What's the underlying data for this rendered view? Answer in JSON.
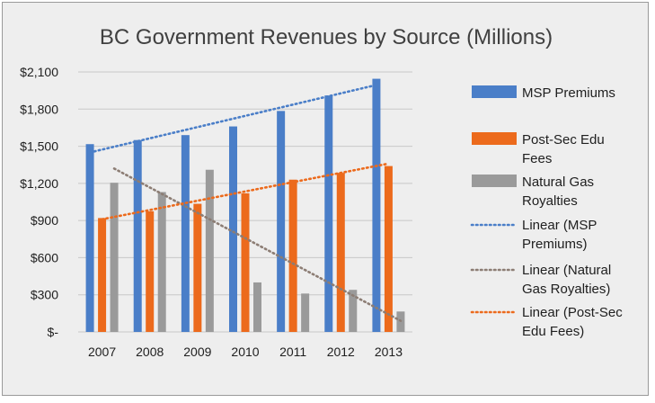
{
  "chart_data": {
    "type": "bar",
    "title": "BC Government Revenues by Source (Millions)",
    "xlabel": "",
    "ylabel": "",
    "categories": [
      "2007",
      "2008",
      "2009",
      "2010",
      "2011",
      "2012",
      "2013"
    ],
    "ylim": [
      0,
      2100
    ],
    "yticks": [
      0,
      300,
      600,
      900,
      1200,
      1500,
      1800,
      2100
    ],
    "ytick_labels": [
      "$-",
      "$300",
      "$600",
      "$900",
      "$1,200",
      "$1,500",
      "$1,800",
      "$2,100"
    ],
    "grid": true,
    "legend_position": "right",
    "series": [
      {
        "name": "MSP Premiums",
        "color": "#4a7ec8",
        "values": [
          1517,
          1550,
          1590,
          1660,
          1785,
          1910,
          2045
        ]
      },
      {
        "name": "Post-Sec Edu Fees",
        "color": "#ec6a1c",
        "values": [
          920,
          975,
          1035,
          1120,
          1230,
          1285,
          1340
        ]
      },
      {
        "name": "Natural Gas Royalties",
        "color": "#9a9a9a",
        "values": [
          1205,
          1130,
          1310,
          400,
          310,
          340,
          165
        ]
      }
    ],
    "trendlines": [
      {
        "name": "Linear (MSP Premiums)",
        "series": "MSP Premiums",
        "color": "#4a7ec8",
        "start": 1450,
        "end": 1995
      },
      {
        "name": "Linear (Natural Gas Royalties)",
        "series": "Natural Gas Royalties",
        "color": "#8c7d74",
        "start": 1320,
        "end": 90
      },
      {
        "name": "Linear (Post-Sec Edu Fees)",
        "series": "Post-Sec Edu Fees",
        "color": "#ec6a1c",
        "start": 910,
        "end": 1360
      }
    ],
    "legend": [
      {
        "label": "MSP Premiums",
        "kind": "bar",
        "color": "#4a7ec8",
        "lines": [
          "MSP Premiums"
        ]
      },
      {
        "label": "Post-Sec Edu Fees",
        "kind": "bar",
        "color": "#ec6a1c",
        "lines": [
          "Post-Sec Edu",
          "Fees"
        ]
      },
      {
        "label": "Natural Gas Royalties",
        "kind": "bar",
        "color": "#9a9a9a",
        "lines": [
          "Natural Gas",
          "Royalties"
        ]
      },
      {
        "label": "Linear (MSP Premiums)",
        "kind": "line",
        "color": "#4a7ec8",
        "lines": [
          "Linear (MSP",
          "Premiums)"
        ]
      },
      {
        "label": "Linear (Natural Gas Royalties)",
        "kind": "line",
        "color": "#8c7d74",
        "lines": [
          "Linear (Natural",
          "Gas Royalties)"
        ]
      },
      {
        "label": "Linear (Post-Sec Edu Fees)",
        "kind": "line",
        "color": "#ec6a1c",
        "lines": [
          "Linear (Post-Sec",
          "Edu Fees)"
        ]
      }
    ]
  }
}
